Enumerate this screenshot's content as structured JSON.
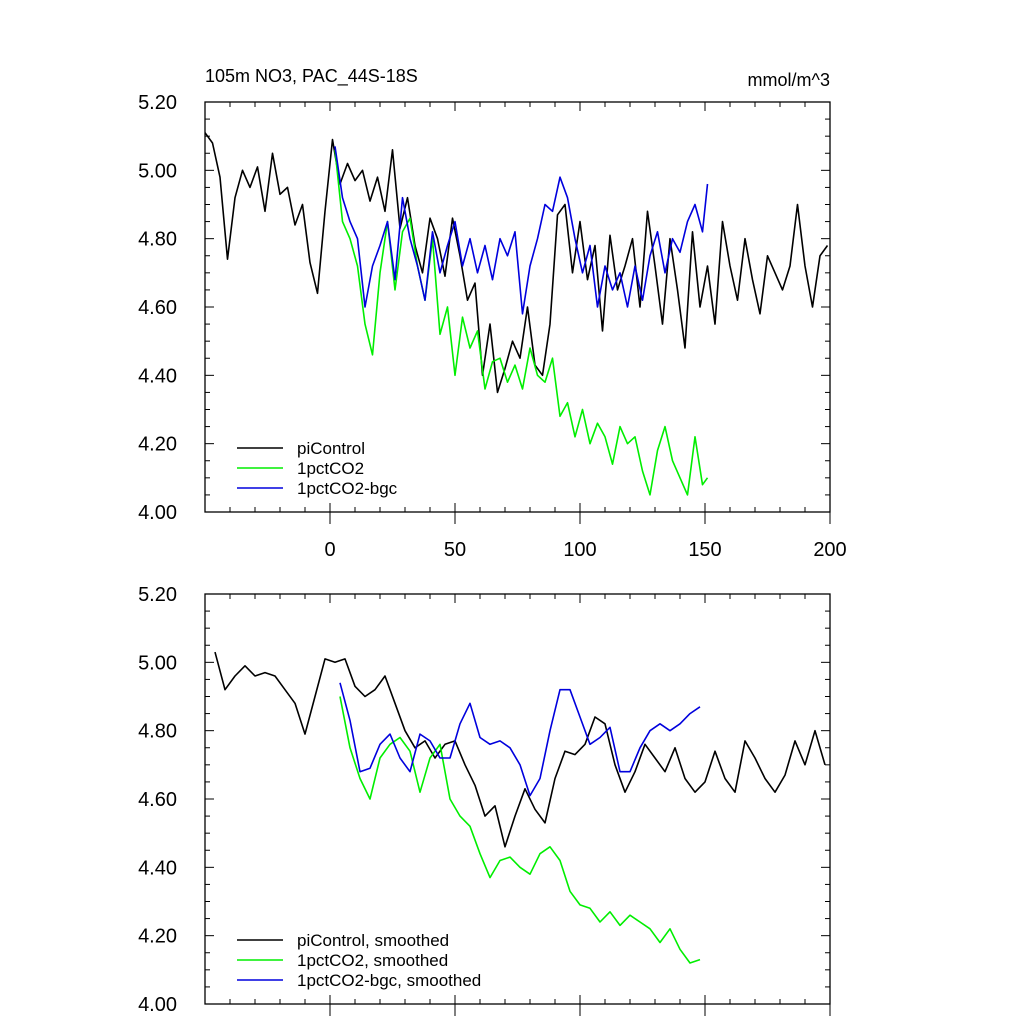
{
  "figure": {
    "title_left": "105m NO3, PAC_44S-18S",
    "title_right": "mmol/m^3"
  },
  "chart_data": [
    {
      "type": "line",
      "name": "raw",
      "xlim": [
        -50,
        200
      ],
      "ylim": [
        4.0,
        5.2
      ],
      "xticks": [
        0,
        50,
        100,
        150,
        200
      ],
      "xtick_labels": [
        "0",
        "50",
        "100",
        "150",
        "200"
      ],
      "yticks": [
        4.0,
        4.2,
        4.4,
        4.6,
        4.8,
        5.0,
        5.2
      ],
      "ytick_labels": [
        "4.00",
        "4.20",
        "4.40",
        "4.60",
        "4.80",
        "5.00",
        "5.20"
      ],
      "legend_position": "bottom-left",
      "series": [
        {
          "name": "piControl",
          "color": "#000000",
          "x": [
            -50,
            -47,
            -44,
            -41,
            -38,
            -35,
            -32,
            -29,
            -26,
            -23,
            -20,
            -17,
            -14,
            -11,
            -8,
            -5,
            -2,
            1,
            4,
            7,
            10,
            13,
            16,
            19,
            22,
            25,
            28,
            31,
            34,
            37,
            40,
            43,
            46,
            49,
            52,
            55,
            58,
            61,
            64,
            67,
            70,
            73,
            76,
            79,
            82,
            85,
            88,
            91,
            94,
            97,
            100,
            103,
            106,
            109,
            112,
            115,
            118,
            121,
            124,
            127,
            130,
            133,
            136,
            139,
            142,
            145,
            148,
            151,
            154,
            157,
            160,
            163,
            166,
            169,
            172,
            175,
            178,
            181,
            184,
            187,
            190,
            193,
            196,
            199
          ],
          "values": [
            5.11,
            5.08,
            4.98,
            4.74,
            4.92,
            5.0,
            4.95,
            5.01,
            4.88,
            5.05,
            4.93,
            4.95,
            4.84,
            4.9,
            4.73,
            4.64,
            4.88,
            5.09,
            4.96,
            5.02,
            4.97,
            5.0,
            4.91,
            4.98,
            4.88,
            5.06,
            4.83,
            4.92,
            4.78,
            4.7,
            4.86,
            4.8,
            4.69,
            4.86,
            4.75,
            4.62,
            4.67,
            4.4,
            4.55,
            4.35,
            4.42,
            4.5,
            4.45,
            4.6,
            4.43,
            4.4,
            4.55,
            4.87,
            4.9,
            4.7,
            4.85,
            4.68,
            4.78,
            4.53,
            4.81,
            4.65,
            4.72,
            4.8,
            4.6,
            4.88,
            4.72,
            4.55,
            4.8,
            4.65,
            4.48,
            4.82,
            4.6,
            4.72,
            4.55,
            4.85,
            4.72,
            4.62,
            4.8,
            4.68,
            4.58,
            4.75,
            4.7,
            4.65,
            4.72,
            4.9,
            4.72,
            4.6,
            4.75,
            4.78
          ]
        },
        {
          "name": "1pctCO2",
          "color": "#00ee00",
          "x": [
            2,
            5,
            8,
            11,
            14,
            17,
            20,
            23,
            26,
            29,
            32,
            35,
            38,
            41,
            44,
            47,
            50,
            53,
            56,
            59,
            62,
            65,
            68,
            71,
            74,
            77,
            80,
            83,
            86,
            89,
            92,
            95,
            98,
            101,
            104,
            107,
            110,
            113,
            116,
            119,
            122,
            125,
            128,
            131,
            134,
            137,
            140,
            143,
            146,
            149,
            151
          ],
          "values": [
            5.06,
            4.85,
            4.8,
            4.72,
            4.55,
            4.46,
            4.7,
            4.85,
            4.65,
            4.82,
            4.86,
            4.72,
            4.62,
            4.8,
            4.52,
            4.6,
            4.4,
            4.57,
            4.48,
            4.53,
            4.36,
            4.44,
            4.45,
            4.38,
            4.43,
            4.36,
            4.48,
            4.4,
            4.38,
            4.45,
            4.28,
            4.32,
            4.22,
            4.3,
            4.2,
            4.26,
            4.22,
            4.14,
            4.25,
            4.2,
            4.22,
            4.12,
            4.05,
            4.18,
            4.25,
            4.15,
            4.1,
            4.05,
            4.22,
            4.08,
            4.1
          ]
        },
        {
          "name": "1pctCO2-bgc",
          "color": "#0000dd",
          "x": [
            2,
            5,
            8,
            11,
            14,
            17,
            20,
            23,
            26,
            29,
            32,
            35,
            38,
            41,
            44,
            47,
            50,
            53,
            56,
            59,
            62,
            65,
            68,
            71,
            74,
            77,
            80,
            83,
            86,
            89,
            92,
            95,
            98,
            101,
            104,
            107,
            110,
            113,
            116,
            119,
            122,
            125,
            128,
            131,
            134,
            137,
            140,
            143,
            146,
            149,
            151
          ],
          "values": [
            5.07,
            4.92,
            4.85,
            4.8,
            4.6,
            4.72,
            4.78,
            4.85,
            4.68,
            4.92,
            4.8,
            4.72,
            4.62,
            4.82,
            4.7,
            4.78,
            4.85,
            4.72,
            4.8,
            4.7,
            4.78,
            4.68,
            4.8,
            4.75,
            4.82,
            4.58,
            4.72,
            4.8,
            4.9,
            4.88,
            4.98,
            4.92,
            4.8,
            4.7,
            4.78,
            4.6,
            4.72,
            4.65,
            4.7,
            4.6,
            4.72,
            4.62,
            4.75,
            4.82,
            4.7,
            4.8,
            4.76,
            4.85,
            4.9,
            4.82,
            4.96
          ]
        }
      ]
    },
    {
      "type": "line",
      "name": "smoothed",
      "xlim": [
        -50,
        200
      ],
      "ylim": [
        4.0,
        5.2
      ],
      "xticks": [
        0,
        50,
        100,
        150,
        200
      ],
      "yticks": [
        4.0,
        4.2,
        4.4,
        4.6,
        4.8,
        5.0,
        5.2
      ],
      "ytick_labels": [
        "4.00",
        "4.20",
        "4.40",
        "4.60",
        "4.80",
        "5.00",
        "5.20"
      ],
      "legend_position": "bottom-left",
      "series": [
        {
          "name": "piControl, smoothed",
          "color": "#000000",
          "x": [
            -46,
            -42,
            -38,
            -34,
            -30,
            -26,
            -22,
            -18,
            -14,
            -10,
            -6,
            -2,
            2,
            6,
            10,
            14,
            18,
            22,
            26,
            30,
            34,
            38,
            42,
            46,
            50,
            54,
            58,
            62,
            66,
            70,
            74,
            78,
            82,
            86,
            90,
            94,
            98,
            102,
            106,
            110,
            114,
            118,
            122,
            126,
            130,
            134,
            138,
            142,
            146,
            150,
            154,
            158,
            162,
            166,
            170,
            174,
            178,
            182,
            186,
            190,
            194,
            198
          ],
          "values": [
            5.03,
            4.92,
            4.96,
            4.99,
            4.96,
            4.97,
            4.96,
            4.92,
            4.88,
            4.79,
            4.9,
            5.01,
            5.0,
            5.01,
            4.93,
            4.9,
            4.92,
            4.96,
            4.88,
            4.8,
            4.75,
            4.77,
            4.72,
            4.76,
            4.77,
            4.7,
            4.64,
            4.55,
            4.58,
            4.46,
            4.55,
            4.63,
            4.57,
            4.53,
            4.66,
            4.74,
            4.73,
            4.76,
            4.84,
            4.82,
            4.7,
            4.62,
            4.68,
            4.76,
            4.72,
            4.68,
            4.75,
            4.66,
            4.62,
            4.65,
            4.74,
            4.66,
            4.62,
            4.77,
            4.72,
            4.66,
            4.62,
            4.67,
            4.77,
            4.7,
            4.8,
            4.7
          ]
        },
        {
          "name": "1pctCO2, smoothed",
          "color": "#00ee00",
          "x": [
            4,
            8,
            12,
            16,
            20,
            24,
            28,
            32,
            36,
            40,
            44,
            48,
            52,
            56,
            60,
            64,
            68,
            72,
            76,
            80,
            84,
            88,
            92,
            96,
            100,
            104,
            108,
            112,
            116,
            120,
            124,
            128,
            132,
            136,
            140,
            144,
            148
          ],
          "values": [
            4.9,
            4.75,
            4.66,
            4.6,
            4.72,
            4.76,
            4.78,
            4.74,
            4.62,
            4.72,
            4.76,
            4.6,
            4.55,
            4.52,
            4.44,
            4.37,
            4.42,
            4.43,
            4.4,
            4.38,
            4.44,
            4.46,
            4.42,
            4.33,
            4.29,
            4.28,
            4.24,
            4.27,
            4.23,
            4.26,
            4.24,
            4.22,
            4.18,
            4.22,
            4.16,
            4.12,
            4.13
          ]
        },
        {
          "name": "1pctCO2-bgc, smoothed",
          "color": "#0000dd",
          "x": [
            4,
            8,
            12,
            16,
            20,
            24,
            28,
            32,
            36,
            40,
            44,
            48,
            52,
            56,
            60,
            64,
            68,
            72,
            76,
            80,
            84,
            88,
            92,
            96,
            100,
            104,
            108,
            112,
            116,
            120,
            124,
            128,
            132,
            136,
            140,
            144,
            148
          ],
          "values": [
            4.94,
            4.83,
            4.68,
            4.69,
            4.76,
            4.79,
            4.72,
            4.68,
            4.79,
            4.77,
            4.72,
            4.72,
            4.82,
            4.88,
            4.78,
            4.76,
            4.77,
            4.75,
            4.7,
            4.61,
            4.66,
            4.8,
            4.92,
            4.92,
            4.84,
            4.76,
            4.78,
            4.81,
            4.68,
            4.68,
            4.75,
            4.8,
            4.82,
            4.8,
            4.82,
            4.85,
            4.87
          ]
        }
      ]
    }
  ]
}
